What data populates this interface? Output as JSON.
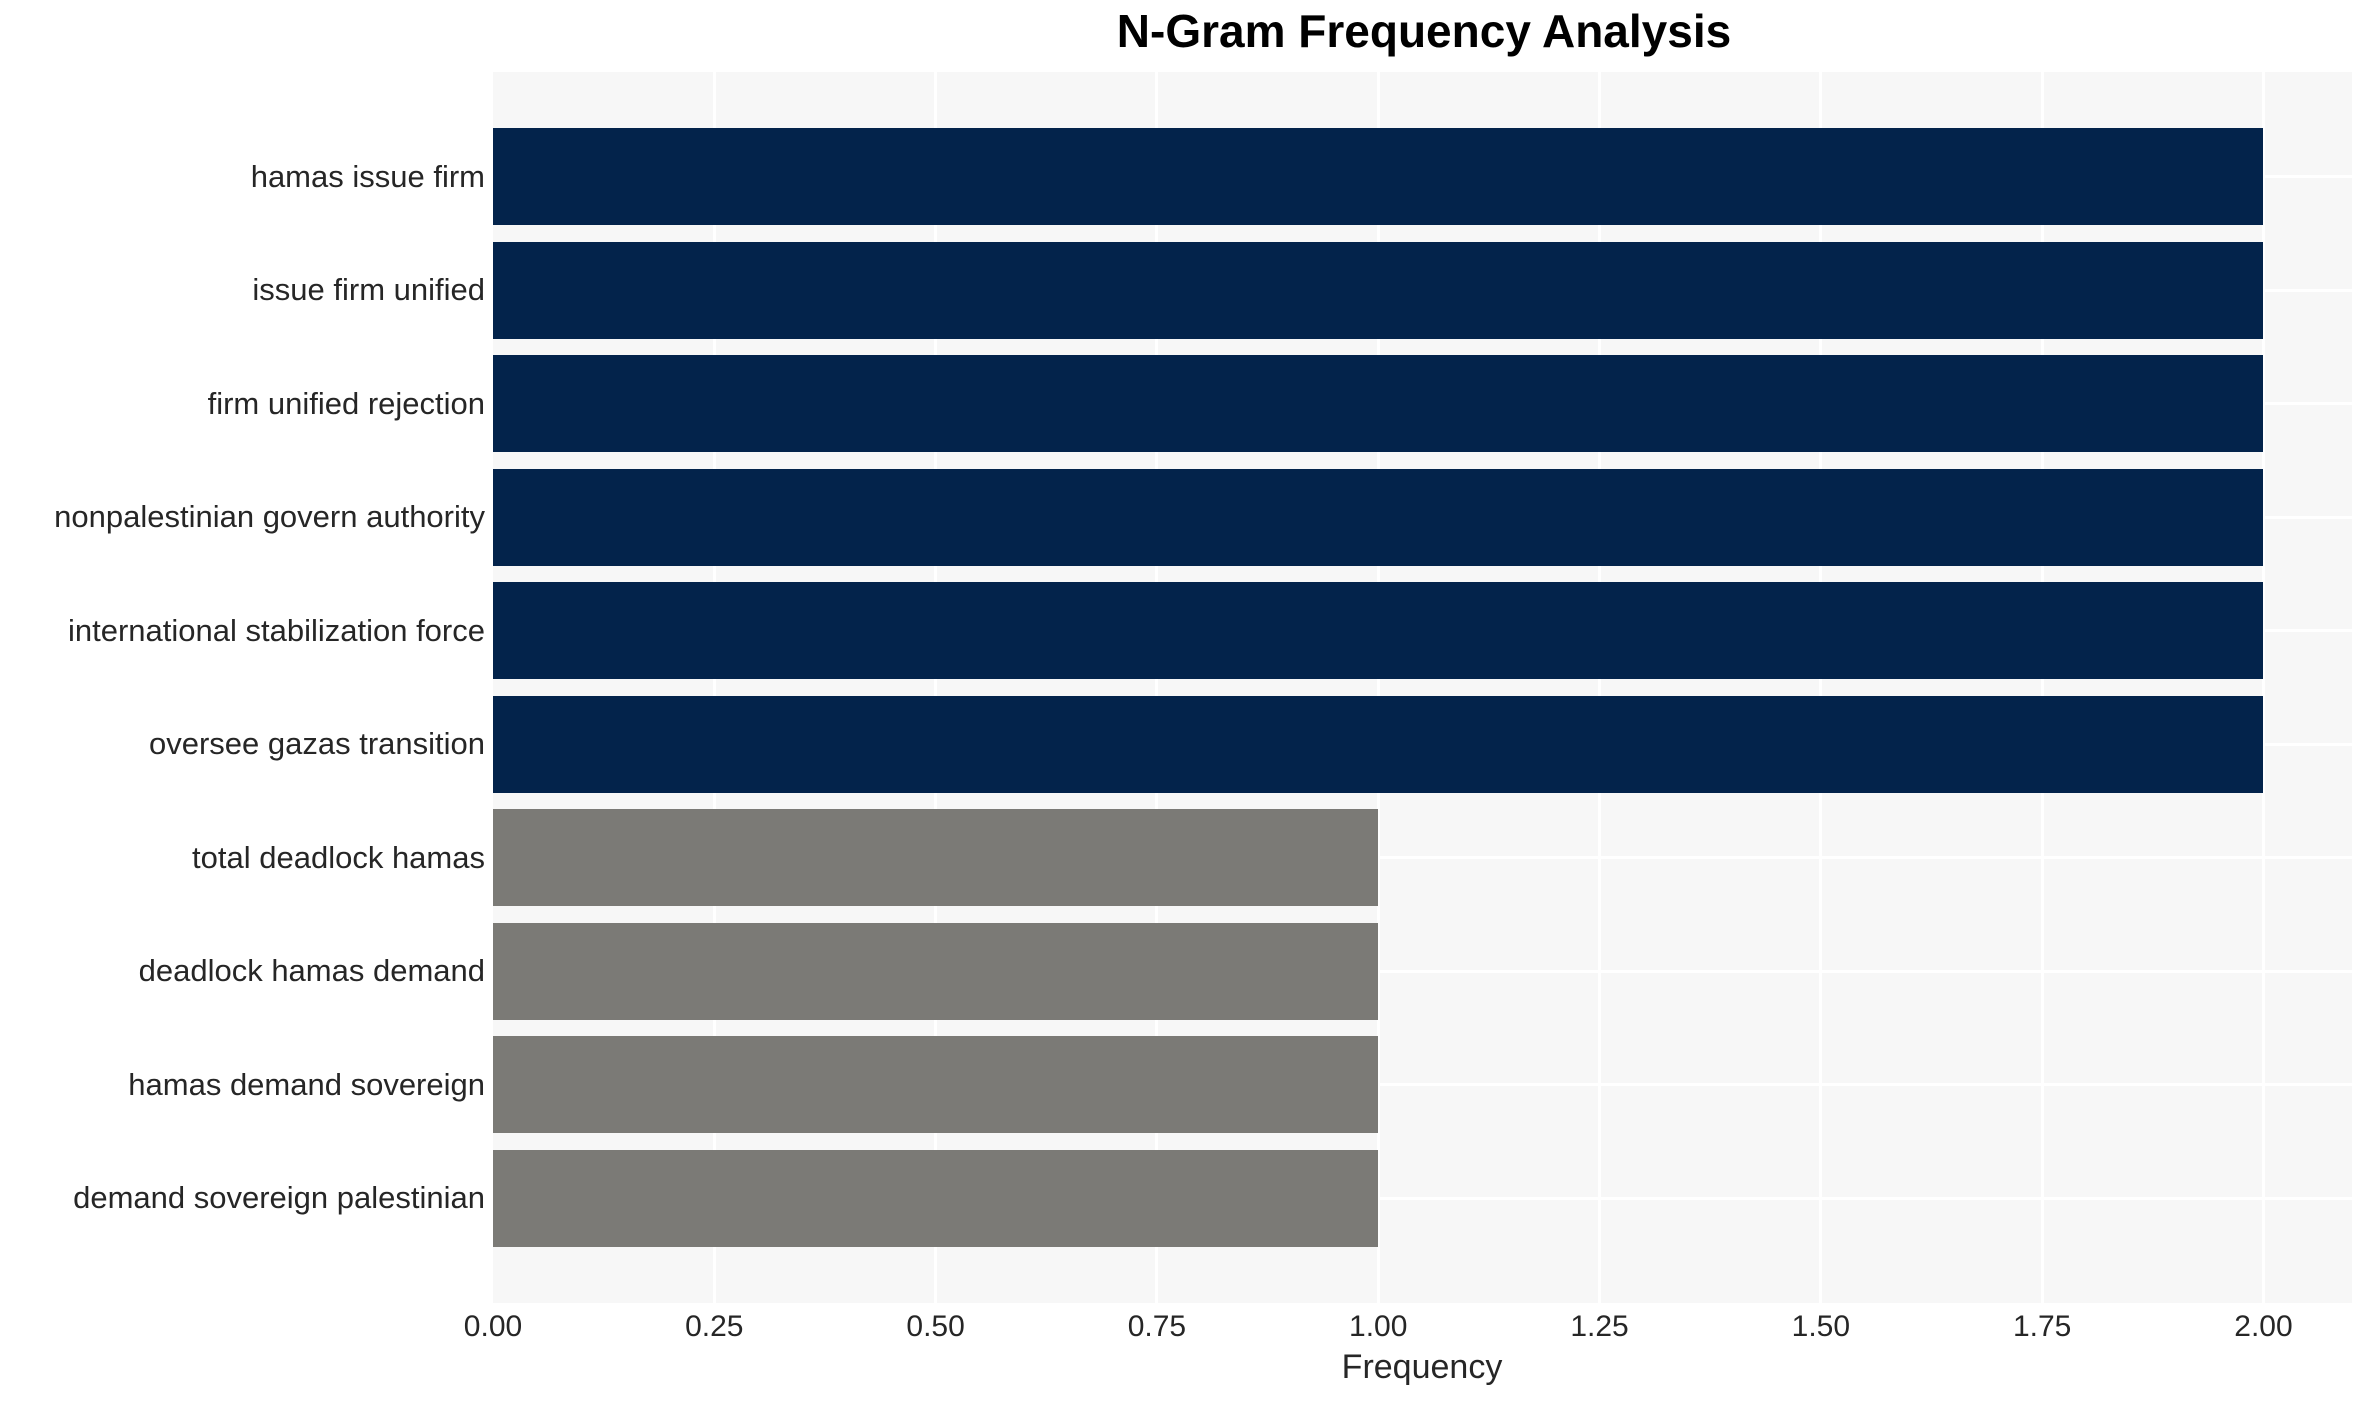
{
  "chart_data": {
    "type": "bar",
    "orientation": "horizontal",
    "title": "N-Gram Frequency Analysis",
    "xlabel": "Frequency",
    "ylabel": "",
    "categories": [
      "hamas issue firm",
      "issue firm unified",
      "firm unified rejection",
      "nonpalestinian govern authority",
      "international stabilization force",
      "oversee gazas transition",
      "total deadlock hamas",
      "deadlock hamas demand",
      "hamas demand sovereign",
      "demand sovereign palestinian"
    ],
    "values": [
      2,
      2,
      2,
      2,
      2,
      2,
      1,
      1,
      1,
      1
    ],
    "bar_colors": [
      "#03234b",
      "#03234b",
      "#03234b",
      "#03234b",
      "#03234b",
      "#03234b",
      "#7b7a76",
      "#7b7a76",
      "#7b7a76",
      "#7b7a76"
    ],
    "xlim": [
      0,
      2.1
    ],
    "xticks": [
      {
        "value": 0.0,
        "label": "0.00"
      },
      {
        "value": 0.25,
        "label": "0.25"
      },
      {
        "value": 0.5,
        "label": "0.50"
      },
      {
        "value": 0.75,
        "label": "0.75"
      },
      {
        "value": 1.0,
        "label": "1.00"
      },
      {
        "value": 1.25,
        "label": "1.25"
      },
      {
        "value": 1.5,
        "label": "1.50"
      },
      {
        "value": 1.75,
        "label": "1.75"
      },
      {
        "value": 2.0,
        "label": "2.00"
      }
    ],
    "grid": true,
    "legend": null,
    "colors": {
      "dark_bar": "#03234b",
      "gray_bar": "#7b7a76",
      "plot_background": "#f7f7f7",
      "grid_line": "#ffffff",
      "tick_text": "#262626",
      "title_text": "#000000",
      "page_background": "#ffffff"
    }
  }
}
